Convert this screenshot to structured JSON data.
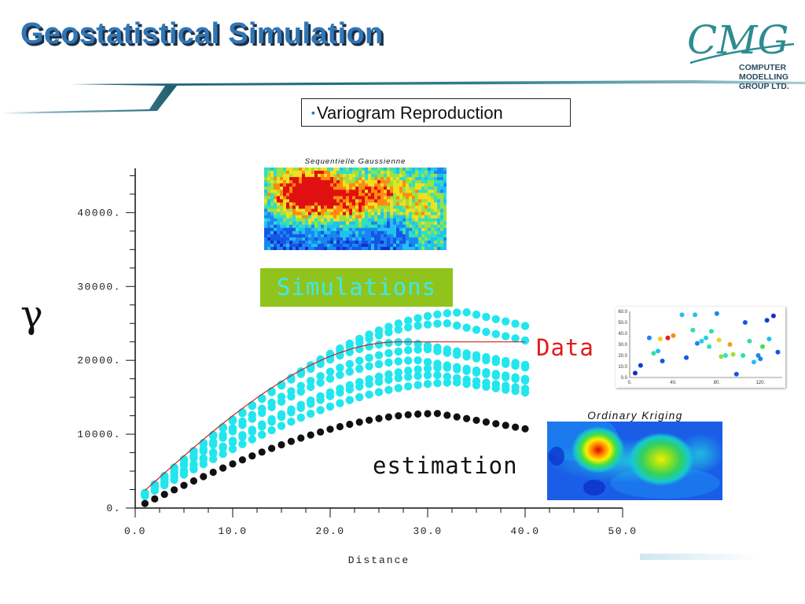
{
  "slide": {
    "title": "Geostatistical Simulation",
    "subtitle": "Variogram Reproduction",
    "bullet": "▪"
  },
  "logo": {
    "wordmark": "CMG",
    "line1": "COMPUTER",
    "line2": "MODELLING",
    "line3": "GROUP LTD."
  },
  "labels": {
    "gamma": "γ",
    "simulations": "Simulations",
    "data": "Data",
    "estimation": "estimation"
  },
  "thumbnails": {
    "simulation_title": "Sequentielle Gaussienne",
    "kriging_title": "Ordinary Kriging",
    "scatter_y_ticks": [
      "60.0",
      "50.0",
      "40.0",
      "30.0",
      "20.0",
      "10.0",
      "0.0"
    ],
    "scatter_x_ticks": [
      "0.",
      "40.",
      "80.",
      "120."
    ]
  },
  "colors": {
    "title": "#2f76b6",
    "simulations": "#22e6ee",
    "estimation": "#111111",
    "model_line": "#d02020",
    "simulations_box": "#90c41c",
    "data_text": "#e21a1a"
  },
  "chart_data": {
    "type": "scatter",
    "xlabel": "Distance",
    "ylabel": "γ",
    "xlim": [
      0,
      50
    ],
    "ylim": [
      0,
      46000
    ],
    "x_ticks": [
      "0.0",
      "10.0",
      "20.0",
      "30.0",
      "40.0",
      "50.0"
    ],
    "y_ticks": [
      "0.",
      "10000.",
      "20000.",
      "30000.",
      "40000."
    ],
    "x_tick_values": [
      0,
      10,
      20,
      30,
      40,
      50
    ],
    "y_tick_values": [
      0,
      10000,
      20000,
      30000,
      40000
    ],
    "simulation_sills": [
      26500,
      25000,
      22500,
      21500,
      20000,
      19000,
      18000,
      17000
    ],
    "simulation_ranges": [
      34,
      32,
      28,
      30,
      29,
      32,
      31,
      33
    ],
    "estimation": {
      "sill": 12800,
      "range": 31,
      "lag_start": 1,
      "lag_end": 40,
      "lag_step": 1
    },
    "model": {
      "sill": 22500,
      "range": 27
    }
  }
}
